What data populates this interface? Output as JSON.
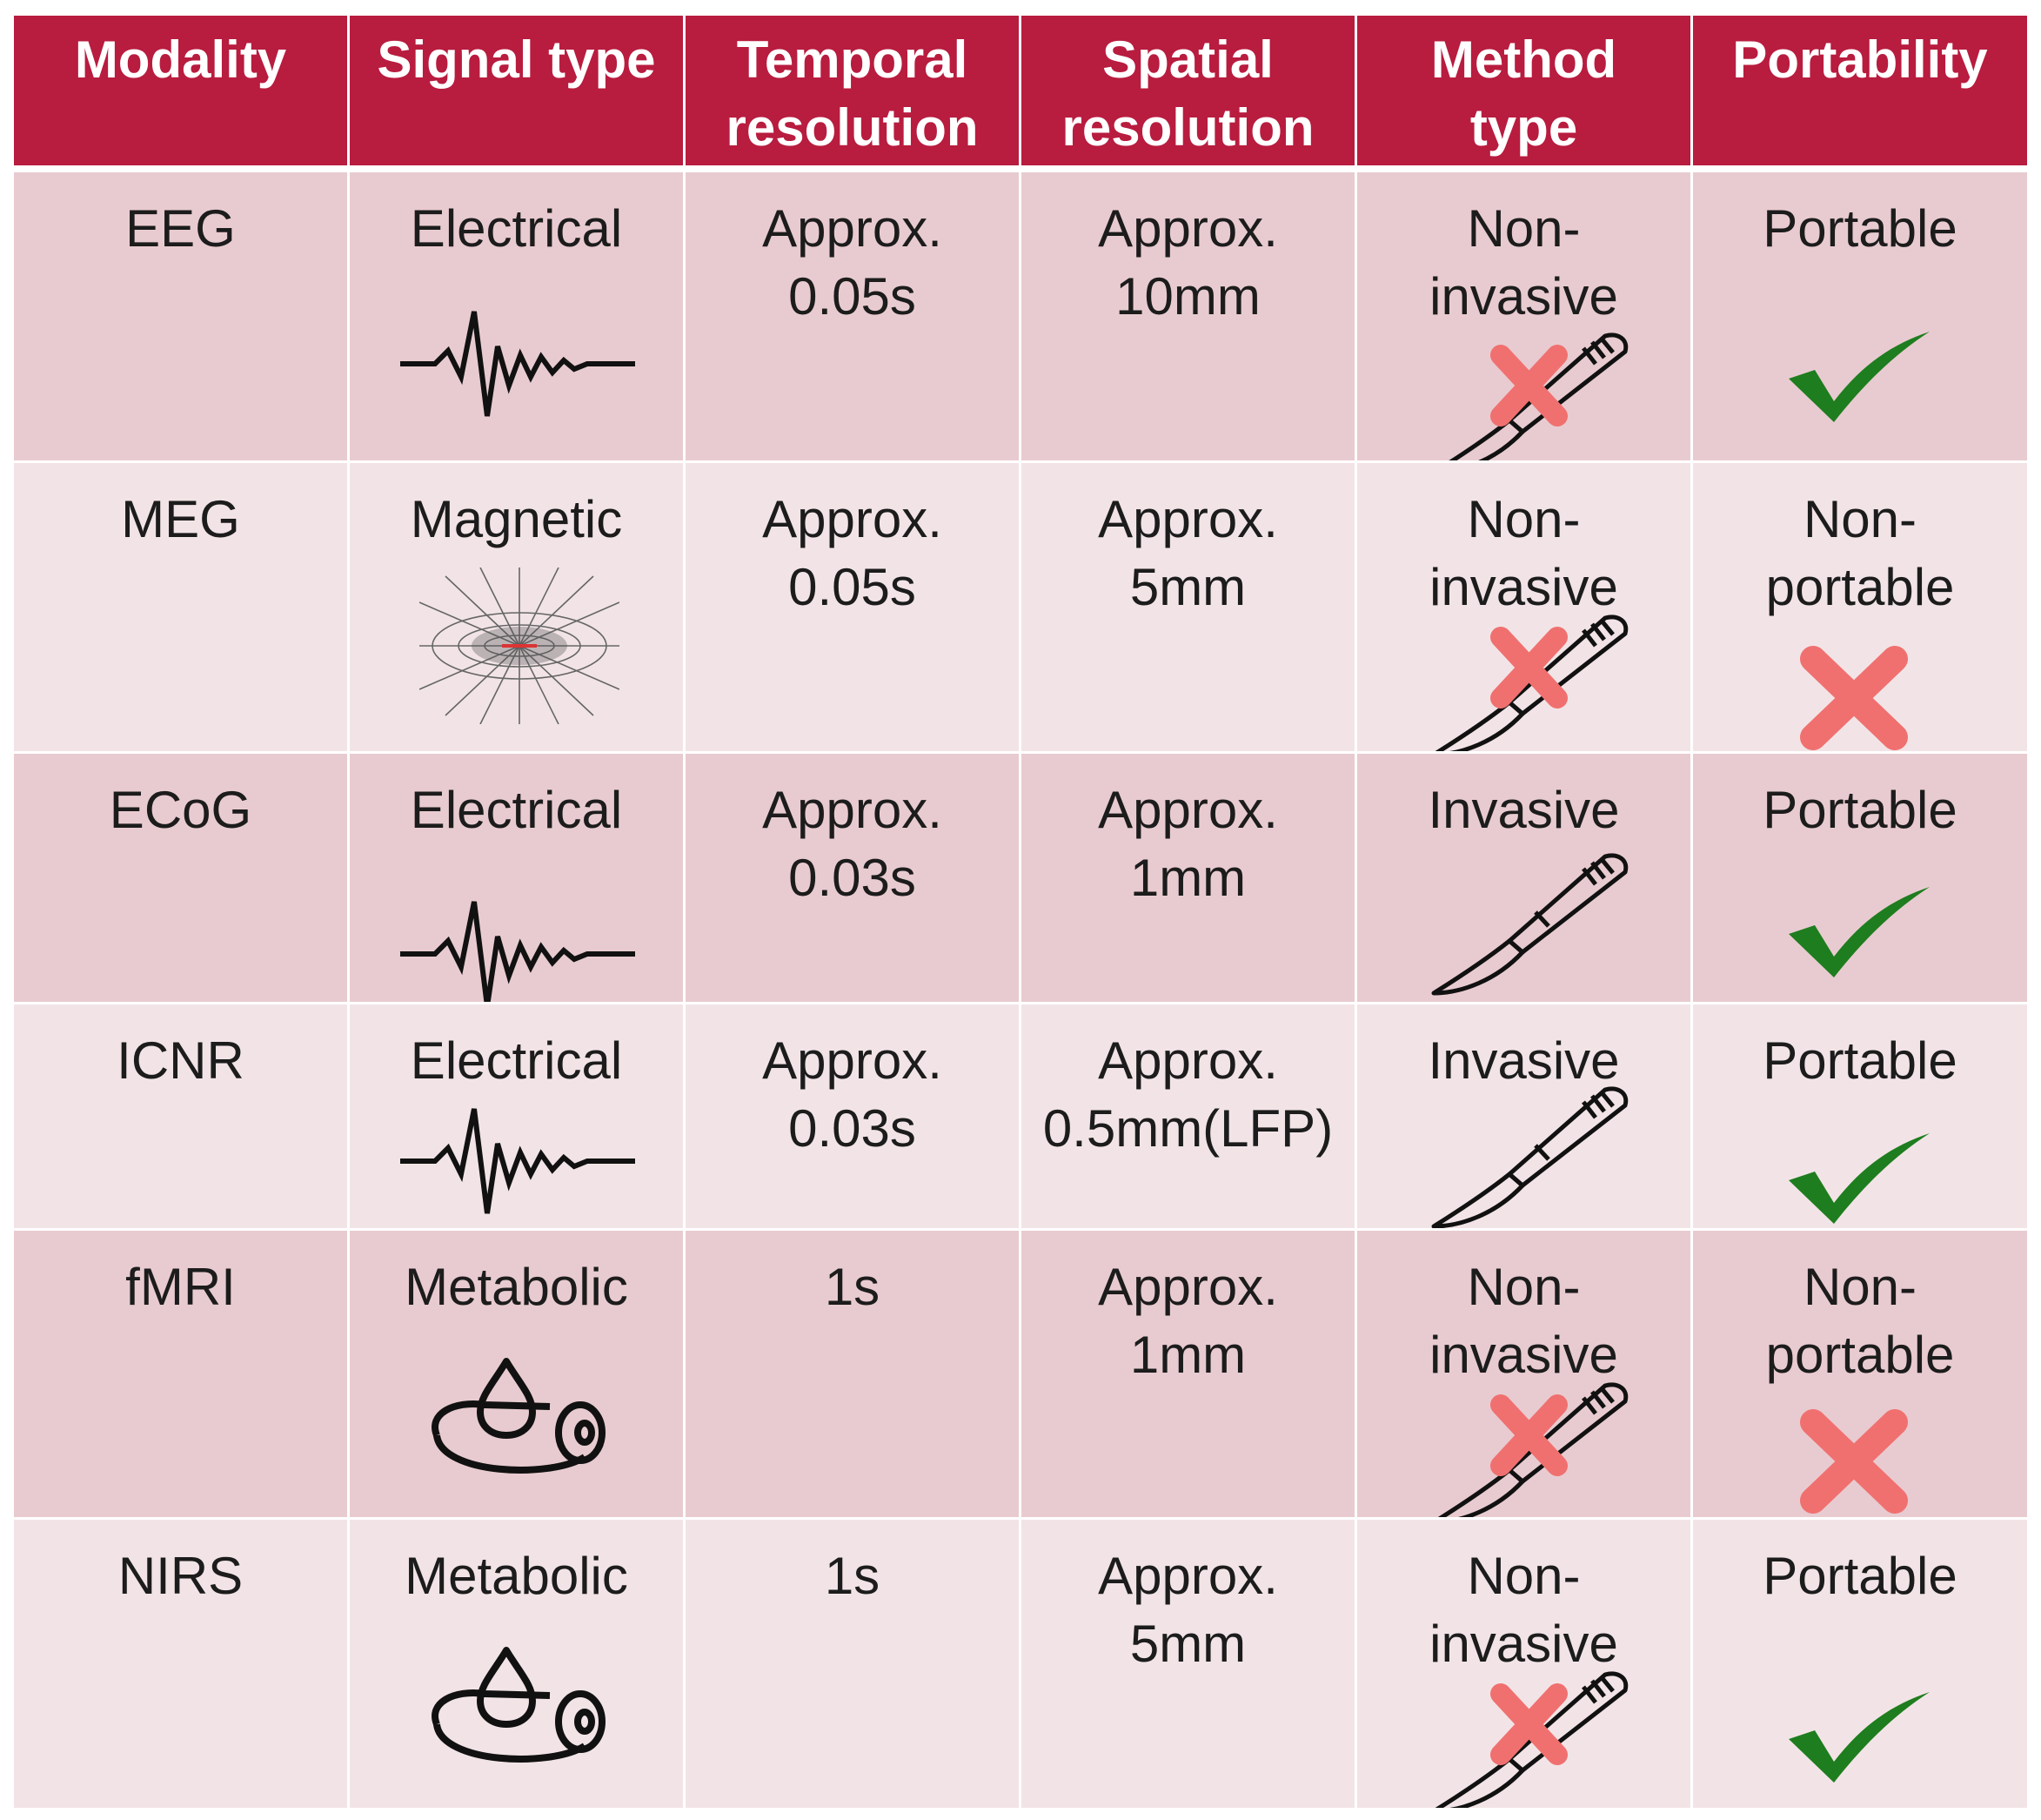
{
  "headers": [
    "Modality",
    "Signal type",
    "Temporal\nresolution",
    "Spatial\nresolution",
    "Method\ntype",
    "Portability"
  ],
  "rows": [
    {
      "modality": "EEG",
      "signal": "Electrical",
      "signal_icon": "waveform-icon",
      "temporal": "Approx.\n0.05s",
      "spatial": "Approx.\n10mm",
      "method": "Non-\ninvasive",
      "method_icon": "scalpel-crossed-icon",
      "portability": "Portable",
      "portability_icon": "checkmark-icon"
    },
    {
      "modality": "MEG",
      "signal": "Magnetic",
      "signal_icon": "magnetic-field-icon",
      "temporal": "Approx.\n0.05s",
      "spatial": "Approx.\n5mm",
      "method": "Non-\ninvasive",
      "method_icon": "scalpel-crossed-icon",
      "portability": "Non-\nportable",
      "portability_icon": "cross-icon"
    },
    {
      "modality": "ECoG",
      "signal": "Electrical",
      "signal_icon": "waveform-icon",
      "temporal": "Approx.\n0.03s",
      "spatial": "Approx.\n1mm",
      "method": "Invasive",
      "method_icon": "scalpel-icon",
      "portability": "Portable",
      "portability_icon": "checkmark-icon"
    },
    {
      "modality": "ICNR",
      "signal": "Electrical",
      "signal_icon": "waveform-icon",
      "temporal": "Approx.\n0.03s",
      "spatial": "Approx.\n0.5mm(LFP)",
      "method": "Invasive",
      "method_icon": "scalpel-icon",
      "portability": "Portable",
      "portability_icon": "checkmark-icon"
    },
    {
      "modality": "fMRI",
      "signal": "Metabolic",
      "signal_icon": "blood-vessel-drop-icon",
      "temporal": "1s",
      "spatial": "Approx.\n1mm",
      "method": "Non-\ninvasive",
      "method_icon": "scalpel-crossed-icon",
      "portability": "Non-\nportable",
      "portability_icon": "cross-icon"
    },
    {
      "modality": "NIRS",
      "signal": "Metabolic",
      "signal_icon": "blood-vessel-drop-icon",
      "temporal": "1s",
      "spatial": "Approx.\n5mm",
      "method": "Non-\ninvasive",
      "method_icon": "scalpel-crossed-icon",
      "portability": "Portable",
      "portability_icon": "checkmark-icon"
    }
  ],
  "colors": {
    "header_bg": "#b81c3f",
    "row_dark": "#e8cbd0",
    "row_light": "#f2e4e6",
    "check": "#1e7d1e",
    "cross": "#f07070"
  }
}
